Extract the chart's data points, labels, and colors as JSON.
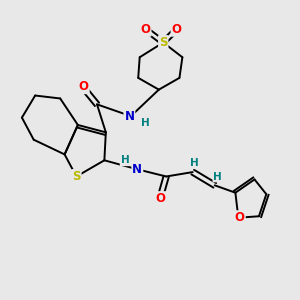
{
  "background_color": "#e8e8e8",
  "figsize": [
    3.0,
    3.0
  ],
  "dpi": 100,
  "atom_colors": {
    "C": "#000000",
    "N": "#0000cc",
    "O": "#ff0000",
    "S": "#bbbb00",
    "H": "#008080"
  },
  "bond_color": "#000000",
  "bond_width": 1.4,
  "font_size_atom": 8.5,
  "font_size_H": 7.5
}
